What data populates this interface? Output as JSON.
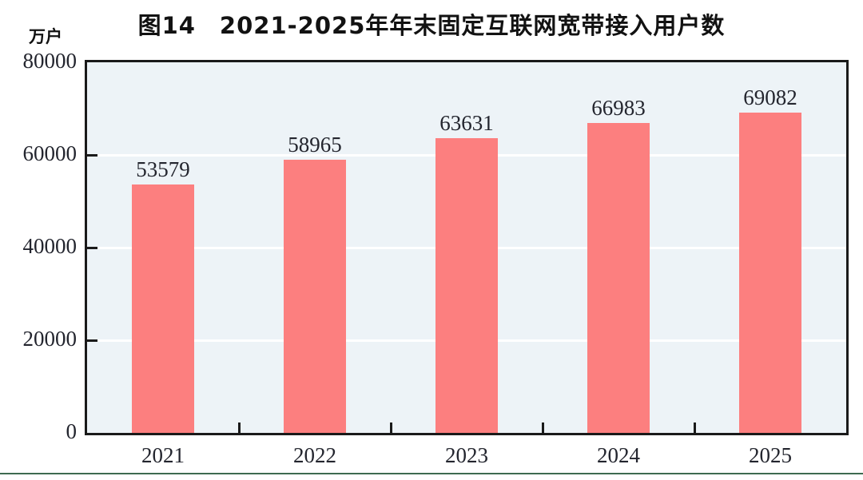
{
  "page": {
    "background": "#ffffff"
  },
  "chart_data": {
    "type": "bar",
    "title": "图14　2021-2025年年末固定互联网宽带接入用户数",
    "ylabel": "万户",
    "xlabel": "",
    "categories": [
      "2021",
      "2022",
      "2023",
      "2024",
      "2025"
    ],
    "values": [
      53579,
      58965,
      63631,
      66983,
      69082
    ],
    "value_labels": [
      "53579",
      "58965",
      "63631",
      "66983",
      "69082"
    ],
    "ylim": [
      0,
      80000
    ],
    "yticks": [
      0,
      20000,
      40000,
      60000,
      80000
    ],
    "ytick_labels": [
      "0",
      "20000",
      "40000",
      "60000",
      "80000"
    ],
    "grid": "horizontal white gridlines at 20000/40000/60000",
    "legend": "none",
    "colors": {
      "bar": "#fc7f7f",
      "plot_background": "#edf3f7",
      "gridline": "#ffffff",
      "axis_border": "#1a1a1a",
      "number_text": "#23252e",
      "title_text": "#121212",
      "page_bottom_rule": "#3e6b50"
    }
  }
}
